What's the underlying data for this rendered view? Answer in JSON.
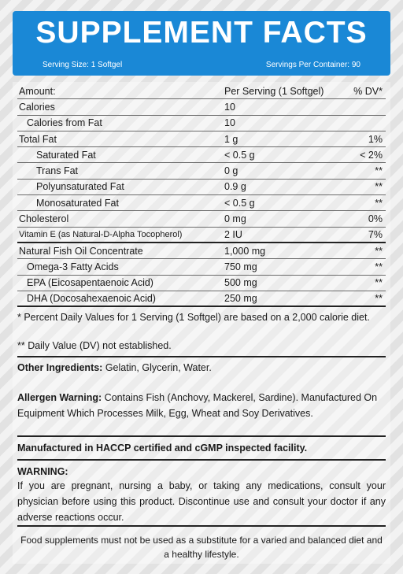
{
  "header": {
    "title": "SUPPLEMENT FACTS",
    "serving_size": "Serving Size: 1 Softgel",
    "servings_per_container": "Servings Per Container: 90"
  },
  "table": {
    "header": {
      "name": "Amount:",
      "amount": "Per Serving (1 Softgel)",
      "dv": "% DV*"
    },
    "rows": [
      {
        "name": "Calories",
        "amount": "10",
        "dv": ""
      },
      {
        "name": "Calories from Fat",
        "amount": "10",
        "dv": ""
      },
      {
        "name": "Total Fat",
        "amount": "1 g",
        "dv": "1%"
      },
      {
        "name": "Saturated Fat",
        "amount": "< 0.5 g",
        "dv": "< 2%"
      },
      {
        "name": "Trans Fat",
        "amount": "0 g",
        "dv": "**"
      },
      {
        "name": "Polyunsaturated Fat",
        "amount": "0.9 g",
        "dv": "**"
      },
      {
        "name": "Monosaturated Fat",
        "amount": "< 0.5 g",
        "dv": "**"
      },
      {
        "name": "Cholesterol",
        "amount": "0 mg",
        "dv": "0%"
      },
      {
        "name": "Vitamin E (as Natural-D-Alpha Tocopherol)",
        "amount": "2 IU",
        "dv": "7%"
      },
      {
        "name": "Natural Fish Oil Concentrate",
        "amount": "1,000 mg",
        "dv": "**"
      },
      {
        "name": "Omega-3 Fatty Acids",
        "amount": "750 mg",
        "dv": "**"
      },
      {
        "name": "EPA (Eicosapentaenoic Acid)",
        "amount": "500 mg",
        "dv": "**"
      },
      {
        "name": "DHA (Docosahexaenoic Acid)",
        "amount": "250 mg",
        "dv": "**"
      }
    ]
  },
  "footnotes": {
    "percent_dv": "* Percent Daily Values for 1 Serving (1 Softgel) are based on a 2,000 calorie diet.",
    "not_established": "** Daily Value (DV) not established."
  },
  "other_ingredients": {
    "label": "Other Ingredients:",
    "text": " Gelatin, Glycerin, Water."
  },
  "allergen": {
    "label": "Allergen Warning:",
    "text": " Contains Fish (Anchovy, Mackerel, Sardine). Manufactured On Equipment Which Processes Milk, Egg, Wheat and Soy Derivatives."
  },
  "facility": "Manufactured in HACCP certified and cGMP inspected facility.",
  "warning": {
    "label": "WARNING:",
    "text": "If you are pregnant, nursing a baby, or taking any medications, consult your physician before using this product. Discontinue use and consult your doctor if any adverse reactions occur."
  },
  "footer": "Food supplements must not be used as a substitute for a varied and balanced diet and a healthy lifestyle.",
  "colors": {
    "header_bg": "#1a88d6",
    "header_text": "#ffffff"
  }
}
